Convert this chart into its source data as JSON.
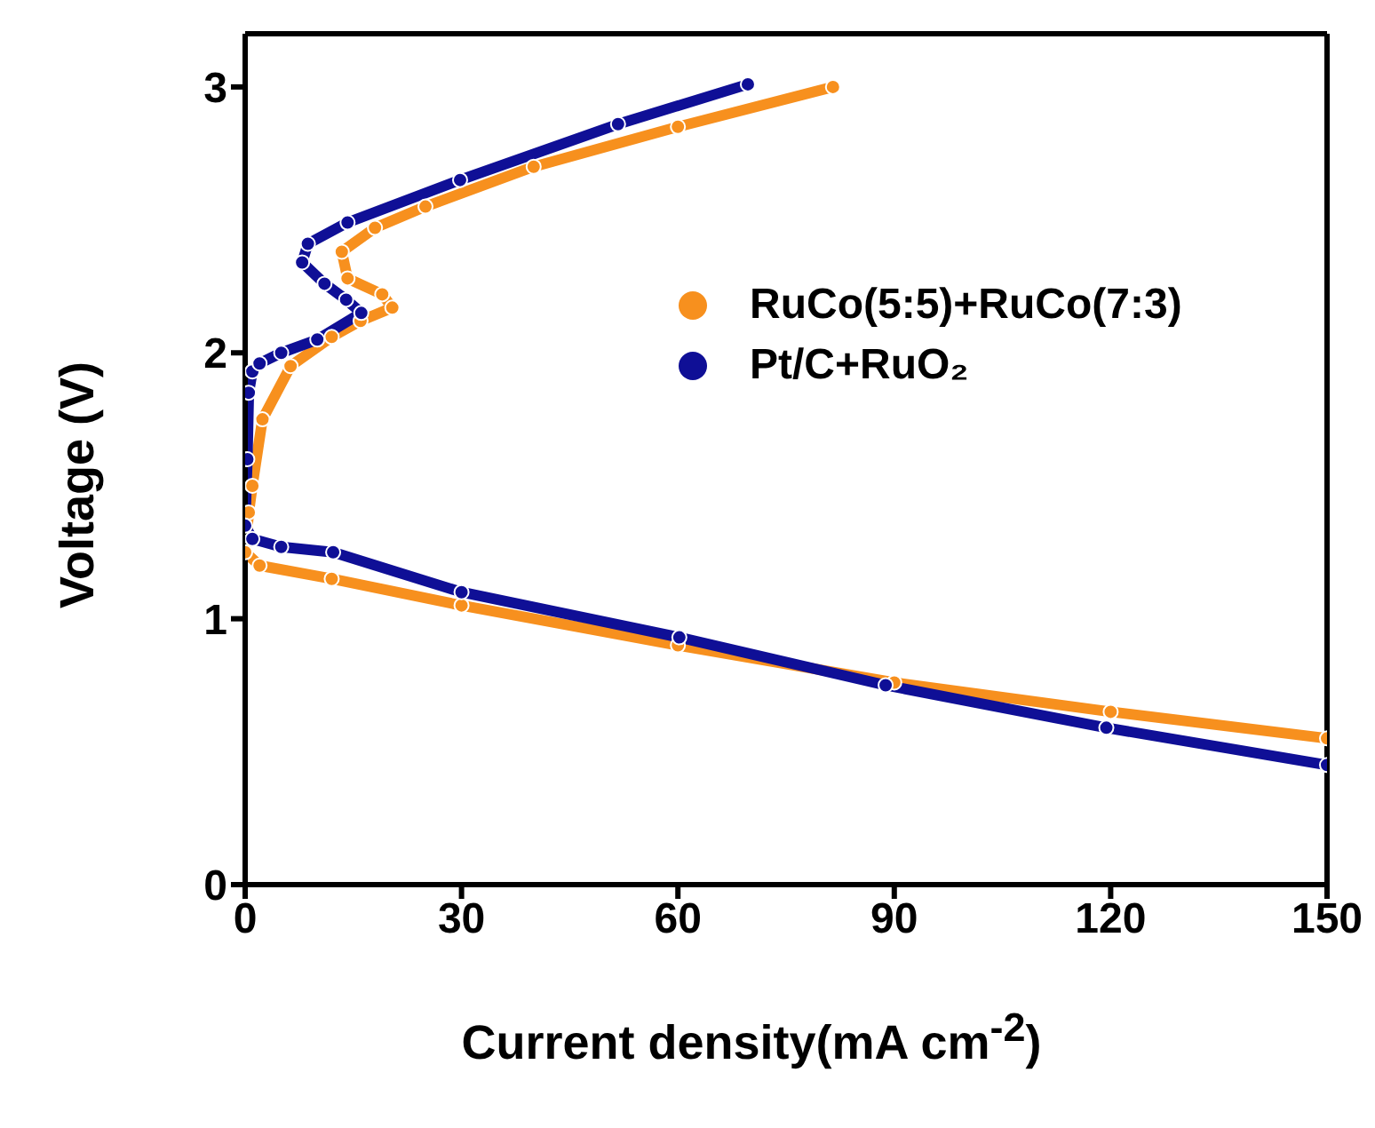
{
  "chart_data": {
    "type": "line",
    "xlabel": "Current density(mA cm$^{-2}$)",
    "ylabel": "Voltage (V)",
    "xlim": [
      0,
      150
    ],
    "xticks": [
      0,
      30,
      60,
      90,
      120,
      150
    ],
    "ylim": [
      0,
      3.2
    ],
    "yticks": [
      0,
      1,
      2,
      3
    ],
    "grid": false,
    "legend": "right",
    "marker": "circle",
    "line_style": "solid",
    "series": [
      {
        "name": "RuCo(5:5)+RuCo(7:3)",
        "color": "#f7901e",
        "x": [
          150,
          120,
          90,
          60,
          30,
          12,
          2,
          0,
          0.5,
          1,
          2.4,
          6.3,
          12,
          16,
          20.4,
          19,
          14.2,
          13.4,
          18,
          25,
          40,
          60,
          81.5
        ],
        "values": [
          0.55,
          0.65,
          0.76,
          0.9,
          1.05,
          1.15,
          1.2,
          1.25,
          1.4,
          1.5,
          1.75,
          1.95,
          2.06,
          2.12,
          2.17,
          2.22,
          2.28,
          2.38,
          2.47,
          2.55,
          2.7,
          2.85,
          3.0
        ]
      },
      {
        "name": "Pt/C+RuO₂",
        "color": "#0f0f96",
        "x": [
          150,
          119.4,
          88.8,
          60.2,
          30,
          12.2,
          5,
          1,
          0,
          0.3,
          0.5,
          1,
          2,
          5,
          10,
          16.1,
          14,
          11,
          7.9,
          8.7,
          14.2,
          29.8,
          51.7,
          69.7
        ],
        "values": [
          0.45,
          0.59,
          0.75,
          0.93,
          1.1,
          1.25,
          1.27,
          1.3,
          1.35,
          1.6,
          1.85,
          1.93,
          1.96,
          2.0,
          2.05,
          2.15,
          2.2,
          2.26,
          2.34,
          2.41,
          2.49,
          2.65,
          2.86,
          3.01
        ]
      }
    ]
  }
}
